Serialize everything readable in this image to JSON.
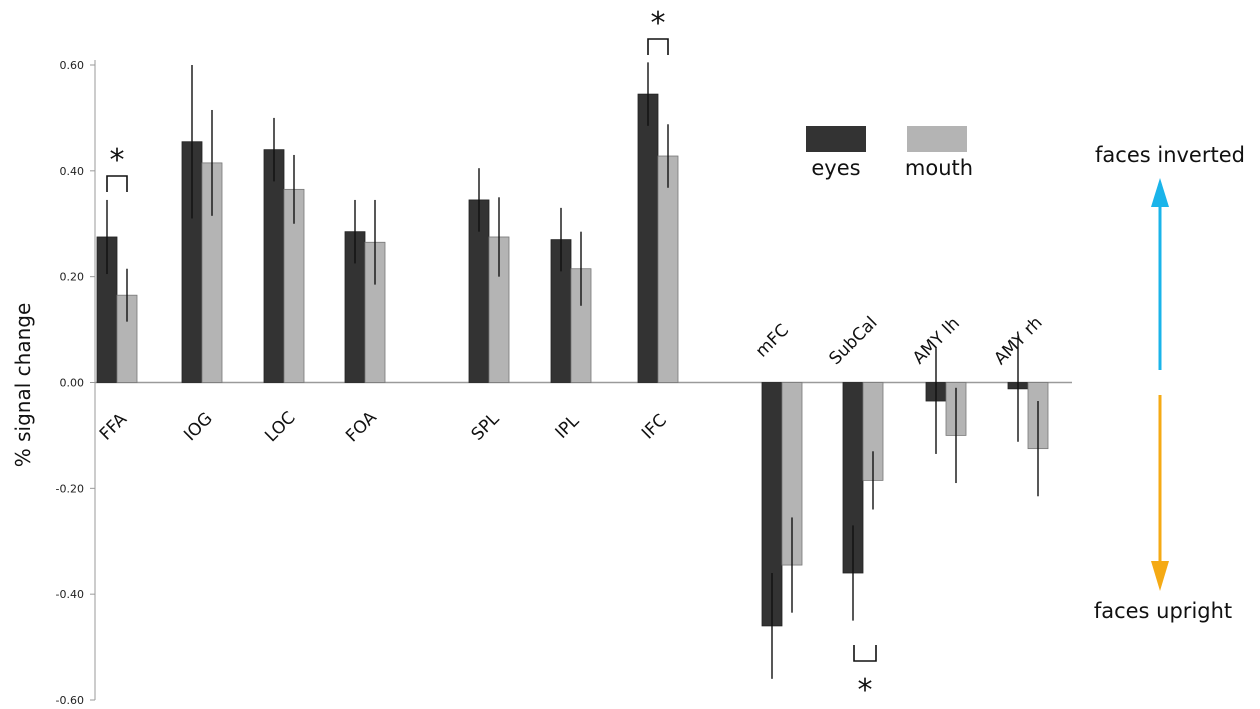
{
  "chart_data": {
    "type": "bar",
    "title": "",
    "xlabel": "",
    "ylabel": "% signal change",
    "ylim": [
      -0.6,
      0.6
    ],
    "yticks": [
      "0.60",
      "0.40",
      "0.20",
      "0.00",
      "-0.20",
      "-0.40",
      "-0.60"
    ],
    "grid": false,
    "legend_position": "top-right",
    "categories": [
      "FFA",
      "IOG",
      "LOC",
      "FOA",
      "SPL",
      "IPL",
      "IFC",
      "mFC",
      "SubCal",
      "AMY lh",
      "AMY rh"
    ],
    "series": [
      {
        "name": "eyes",
        "color": "#333333",
        "values": [
          0.275,
          0.455,
          0.44,
          0.285,
          0.345,
          0.27,
          0.545,
          -0.46,
          -0.36,
          -0.035,
          -0.012
        ],
        "error": [
          0.07,
          0.145,
          0.06,
          0.06,
          0.06,
          0.06,
          0.06,
          0.1,
          0.09,
          0.1,
          0.1
        ]
      },
      {
        "name": "mouth",
        "color": "#b4b4b4",
        "values": [
          0.165,
          0.415,
          0.365,
          0.265,
          0.275,
          0.215,
          0.428,
          -0.345,
          -0.185,
          -0.1,
          -0.125
        ],
        "error": [
          0.05,
          0.1,
          0.065,
          0.08,
          0.075,
          0.07,
          0.06,
          0.09,
          0.055,
          0.09,
          0.09
        ]
      }
    ],
    "significance": [
      {
        "category": "FFA",
        "marker": "*"
      },
      {
        "category": "IFC",
        "marker": "*"
      },
      {
        "category": "SubCal",
        "marker": "*"
      }
    ],
    "annotations": {
      "up_label": "faces inverted",
      "down_label": "faces upright",
      "up_color": "#1ab4ea",
      "down_color": "#f5aa14"
    }
  }
}
